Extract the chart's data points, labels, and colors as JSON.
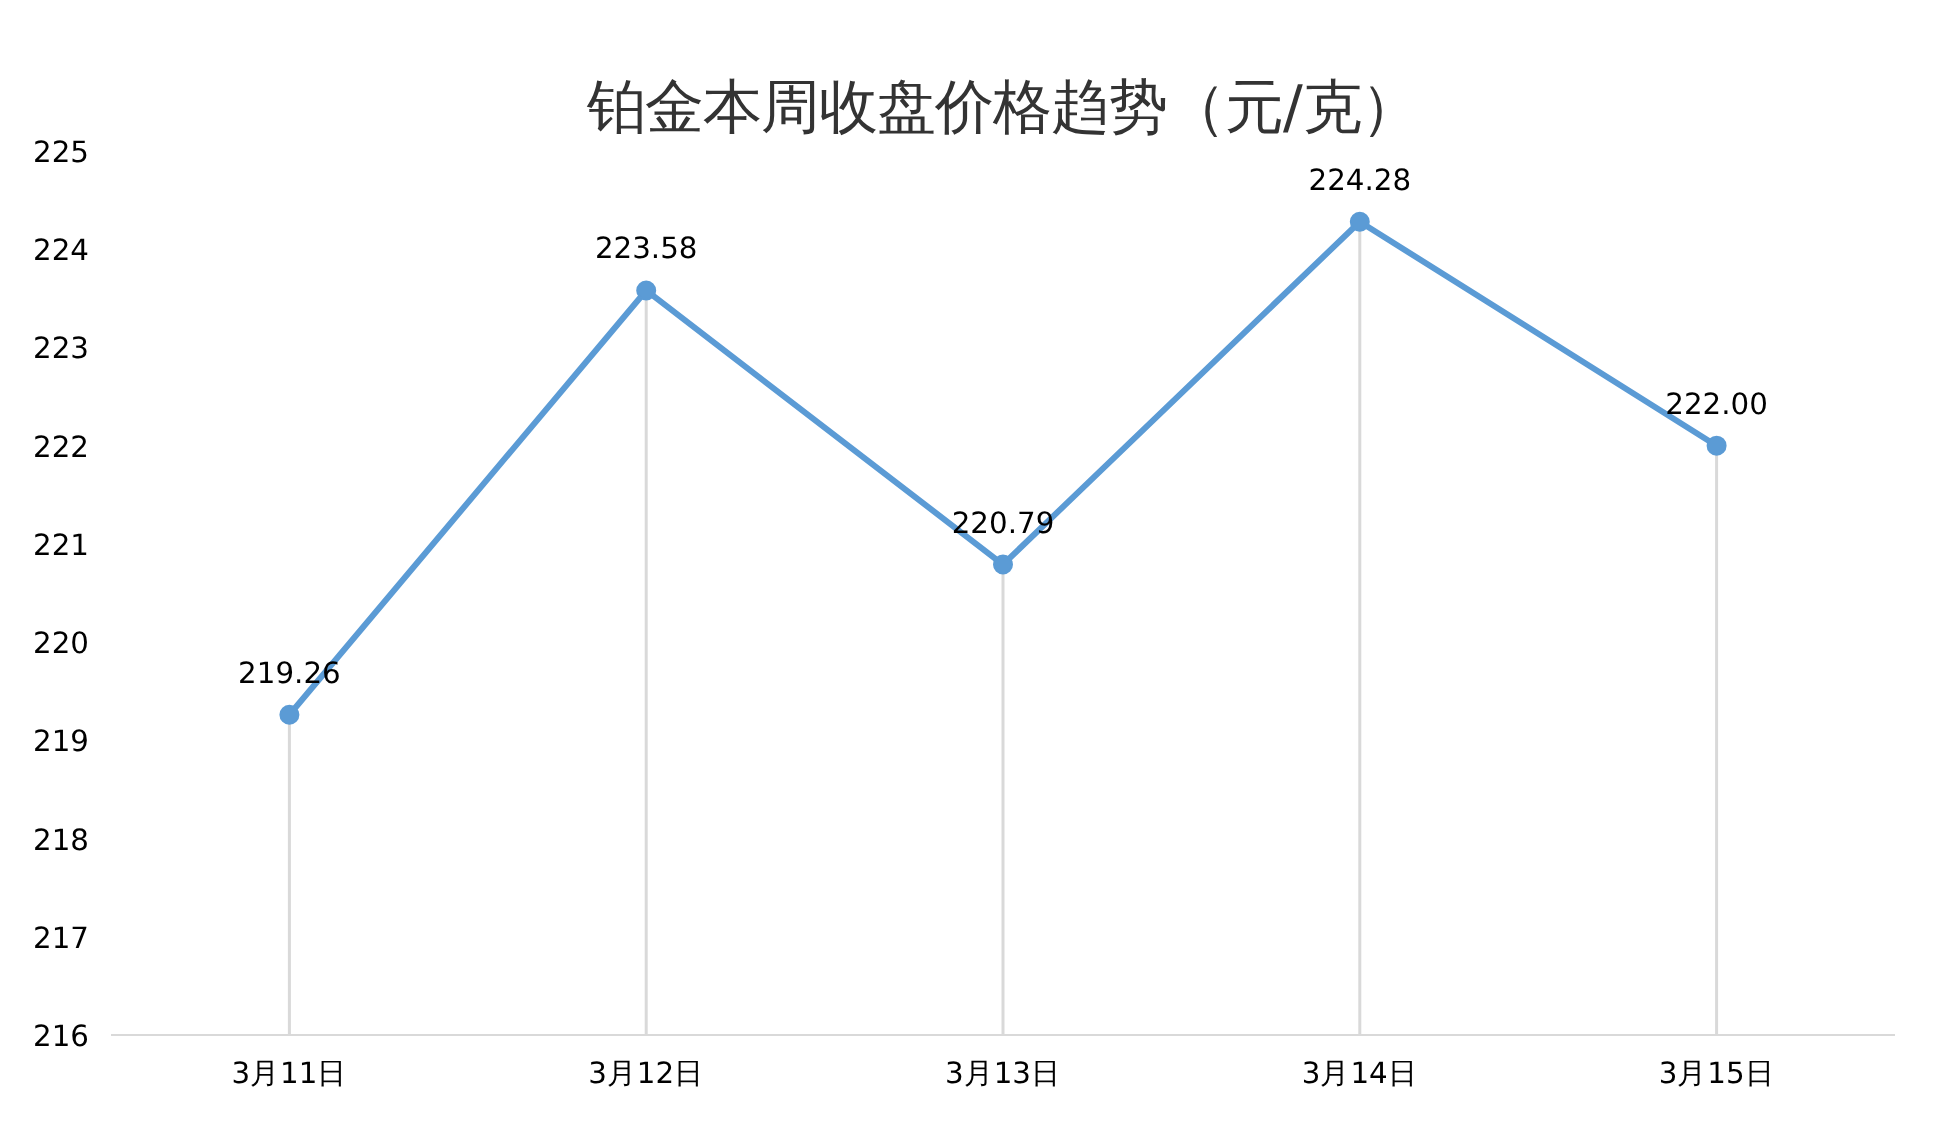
{
  "chart_data": {
    "type": "line",
    "title": "铂金本周收盘价格趋势（元/克）",
    "categories": [
      "3月11日",
      "3月12日",
      "3月13日",
      "3月14日",
      "3月15日"
    ],
    "series": [
      {
        "color": "#5b9bd5",
        "values": [
          219.26,
          223.58,
          220.79,
          224.28,
          222.0
        ]
      }
    ],
    "value_labels": [
      "219.26",
      "223.58",
      "220.79",
      "224.28",
      "222.00"
    ],
    "ylim": [
      216,
      225
    ],
    "yticks": [
      216,
      217,
      218,
      219,
      220,
      221,
      222,
      223,
      224,
      225
    ],
    "grid": "x",
    "marker": "circle",
    "line_style": "solid"
  }
}
